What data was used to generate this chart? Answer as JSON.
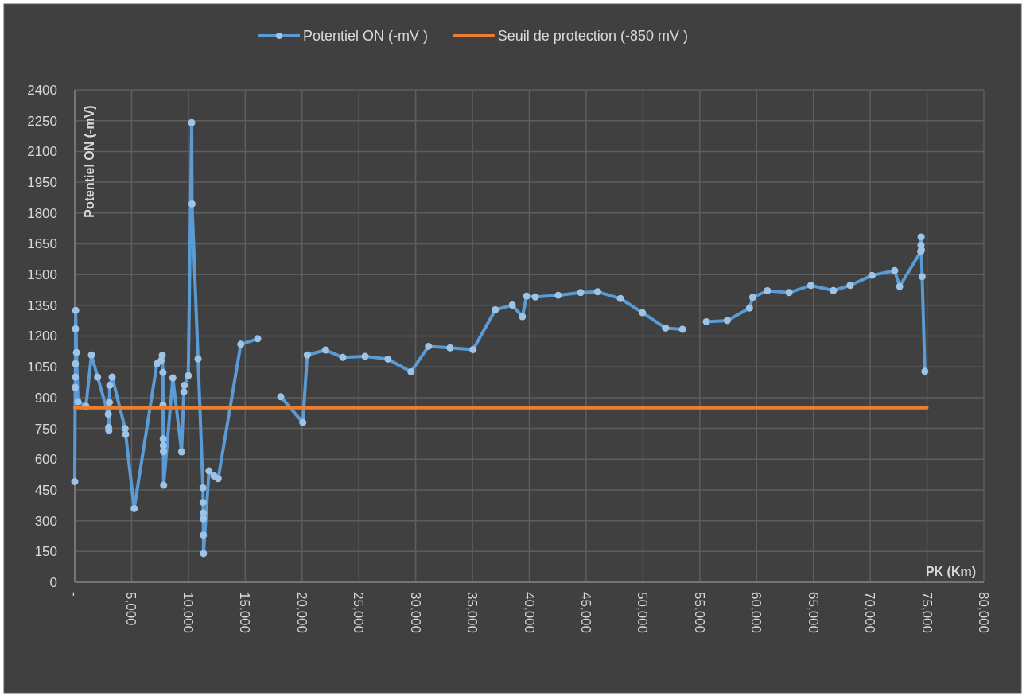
{
  "chart_data": {
    "type": "line",
    "ylabel": "Potentiel ON (-mV)",
    "xlabel": "PK (Km)",
    "xlim": [
      0,
      80000
    ],
    "xticks": [
      {
        "value": 0,
        "label": "-"
      },
      {
        "value": 5000,
        "label": "5,000"
      },
      {
        "value": 10000,
        "label": "10,000"
      },
      {
        "value": 15000,
        "label": "15,000"
      },
      {
        "value": 20000,
        "label": "20,000"
      },
      {
        "value": 25000,
        "label": "25,000"
      },
      {
        "value": 30000,
        "label": "30,000"
      },
      {
        "value": 35000,
        "label": "35,000"
      },
      {
        "value": 40000,
        "label": "40,000"
      },
      {
        "value": 45000,
        "label": "45,000"
      },
      {
        "value": 50000,
        "label": "50,000"
      },
      {
        "value": 55000,
        "label": "55,000"
      },
      {
        "value": 60000,
        "label": "60,000"
      },
      {
        "value": 65000,
        "label": "65,000"
      },
      {
        "value": 70000,
        "label": "70,000"
      },
      {
        "value": 75000,
        "label": "75,000"
      },
      {
        "value": 80000,
        "label": "80,000"
      }
    ],
    "ylim": [
      0,
      2400
    ],
    "yticks": [
      0,
      150,
      300,
      450,
      600,
      750,
      900,
      1050,
      1200,
      1350,
      1500,
      1650,
      1800,
      1950,
      2100,
      2250,
      2400
    ],
    "grid": true,
    "legend": "top",
    "series": [
      {
        "name": "Potentiel ON (-mV )",
        "color": "#5b9bd5",
        "marker": "circle",
        "x": [
          0,
          40,
          50,
          60,
          70,
          80,
          150,
          280,
          980,
          1470,
          2010,
          2950,
          2980,
          3000,
          3050,
          3080,
          3290,
          4430,
          4480,
          5230,
          7230,
          7600,
          7700,
          7760,
          7770,
          7780,
          7790,
          7800,
          7820,
          8630,
          9400,
          9600,
          9640,
          9990,
          10290,
          10320,
          10850,
          11280,
          11290,
          11300,
          11310,
          11320,
          11330,
          11810,
          12250,
          12620,
          14610,
          16100,
          17000,
          18130,
          20070,
          20460,
          22070,
          23590,
          25550,
          27560,
          29590,
          31130,
          33020,
          35050,
          37010,
          38500,
          39390,
          39760,
          40530,
          42540,
          44520,
          46010,
          48020,
          49960,
          51990,
          53480,
          54500,
          55580,
          57420,
          59380,
          59660,
          60950,
          62860,
          64770,
          66760,
          68230,
          70160,
          72150,
          72590,
          74450,
          74470,
          74480,
          74500,
          74570,
          74810
        ],
        "values": [
          490,
          950,
          1000,
          1065,
          1235,
          1325,
          1120,
          880,
          858,
          1108,
          1000,
          819,
          755,
          740,
          877,
          960,
          1000,
          749,
          721,
          359,
          1065,
          1081,
          1106,
          1023,
          864,
          699,
          667,
          637,
          473,
          996,
          636,
          928,
          960,
          1007,
          2240,
          1844,
          1089,
          460,
          389,
          337,
          309,
          230,
          140,
          543,
          518,
          505,
          1160,
          1187,
          null,
          904,
          779,
          1108,
          1132,
          1096,
          1101,
          1088,
          1026,
          1150,
          1143,
          1134,
          1328,
          1351,
          1295,
          1395,
          1391,
          1399,
          1412,
          1416,
          1383,
          1314,
          1239,
          1233,
          null,
          1270,
          1276,
          1337,
          1389,
          1421,
          1412,
          1447,
          1422,
          1447,
          1496,
          1519,
          1442,
          1612,
          1643,
          1683,
          1620,
          1490,
          1028
        ]
      },
      {
        "name": "Seuil de protection (-850 mV )",
        "color": "#ed7d31",
        "marker": "none",
        "x": [
          0,
          75000
        ],
        "values": [
          850,
          850
        ]
      }
    ]
  }
}
